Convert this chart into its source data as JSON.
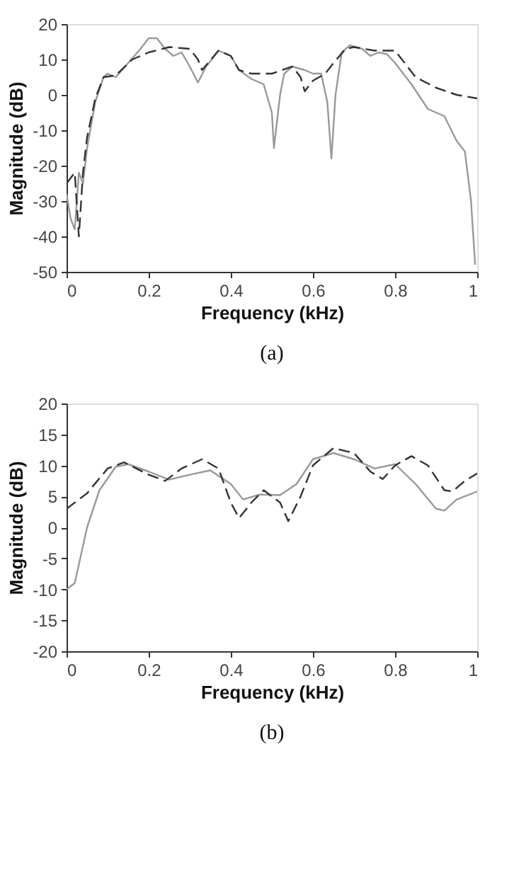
{
  "chart_data": [
    {
      "type": "line",
      "xlabel": "Frequency (kHz)",
      "ylabel": "Magnitude (dB)",
      "annotations": [
        "(a)"
      ],
      "xlim": [
        0,
        1
      ],
      "xticks": [
        0,
        0.2,
        0.4,
        0.6,
        0.8,
        1
      ],
      "ylim": [
        -50,
        20
      ],
      "yticks": [
        -50,
        -40,
        -30,
        -20,
        -10,
        0,
        10,
        20
      ],
      "grid": false,
      "marker": "none",
      "series": [
        {
          "color": "#999999",
          "line_style": "solid",
          "x": [
            0,
            0.01,
            0.02,
            0.03,
            0.04,
            0.05,
            0.07,
            0.09,
            0.1,
            0.12,
            0.15,
            0.18,
            0.2,
            0.22,
            0.24,
            0.26,
            0.28,
            0.3,
            0.32,
            0.34,
            0.37,
            0.4,
            0.42,
            0.45,
            0.48,
            0.5,
            0.505,
            0.52,
            0.53,
            0.55,
            0.58,
            0.6,
            0.62,
            0.635,
            0.645,
            0.655,
            0.67,
            0.69,
            0.72,
            0.74,
            0.76,
            0.78,
            0.8,
            0.84,
            0.88,
            0.92,
            0.95,
            0.97,
            0.985,
            0.995
          ],
          "values": [
            -28,
            -35,
            -38,
            -22,
            -25,
            -15,
            -2,
            5,
            6,
            5,
            9,
            13,
            16,
            16,
            13,
            11,
            12,
            8,
            3.5,
            8,
            12.5,
            11,
            7,
            4.5,
            3,
            -5,
            -15,
            0,
            6,
            8,
            7,
            6,
            6,
            -2,
            -18,
            0,
            12,
            14,
            13,
            11,
            12,
            11.5,
            9,
            3,
            -4,
            -6,
            -13,
            -16,
            -30,
            -48
          ]
        },
        {
          "color": "#333333",
          "line_style": "dashed",
          "x": [
            0,
            0.02,
            0.03,
            0.04,
            0.05,
            0.07,
            0.09,
            0.12,
            0.16,
            0.2,
            0.25,
            0.3,
            0.32,
            0.33,
            0.37,
            0.4,
            0.42,
            0.45,
            0.5,
            0.55,
            0.57,
            0.58,
            0.6,
            0.63,
            0.65,
            0.68,
            0.7,
            0.75,
            0.8,
            0.85,
            0.9,
            0.95,
            1
          ],
          "values": [
            -25,
            -22,
            -40,
            -22,
            -12,
            -1,
            5,
            5.5,
            10,
            12,
            13.5,
            13,
            10,
            7,
            12.5,
            11,
            7,
            6,
            6,
            8,
            5,
            1,
            4,
            6,
            9,
            13,
            13.5,
            12.5,
            12.5,
            5,
            2,
            0,
            -1
          ]
        }
      ]
    },
    {
      "type": "line",
      "xlabel": "Frequency (kHz)",
      "ylabel": "Magnitude (dB)",
      "annotations": [
        "(b)"
      ],
      "xlim": [
        0,
        1
      ],
      "xticks": [
        0,
        0.2,
        0.4,
        0.6,
        0.8,
        1
      ],
      "ylim": [
        -20,
        20
      ],
      "yticks": [
        -20,
        -15,
        -10,
        -5,
        0,
        5,
        10,
        15,
        20
      ],
      "grid": false,
      "marker": "none",
      "series": [
        {
          "color": "#999999",
          "line_style": "solid",
          "x": [
            0,
            0.02,
            0.05,
            0.08,
            0.12,
            0.15,
            0.2,
            0.25,
            0.3,
            0.35,
            0.4,
            0.43,
            0.47,
            0.52,
            0.56,
            0.6,
            0.65,
            0.7,
            0.75,
            0.8,
            0.85,
            0.9,
            0.92,
            0.95,
            1
          ],
          "values": [
            -10,
            -9,
            0,
            6,
            9.8,
            10.2,
            9,
            7.7,
            8.5,
            9.2,
            7,
            4.5,
            5.3,
            5.2,
            7,
            11,
            12,
            11,
            9.5,
            10.2,
            7,
            3,
            2.7,
            4.5,
            5.8
          ]
        },
        {
          "color": "#333333",
          "line_style": "dashed",
          "x": [
            0,
            0.05,
            0.1,
            0.14,
            0.2,
            0.24,
            0.28,
            0.33,
            0.37,
            0.4,
            0.42,
            0.45,
            0.48,
            0.52,
            0.54,
            0.57,
            0.6,
            0.65,
            0.7,
            0.74,
            0.77,
            0.8,
            0.84,
            0.88,
            0.92,
            0.94,
            0.97,
            1
          ],
          "values": [
            3,
            5.5,
            9.5,
            10.5,
            8.5,
            7.5,
            9.5,
            11,
            9.5,
            4,
            1.5,
            4,
            6,
            4,
            1,
            5,
            10,
            12.8,
            12,
            9,
            7.8,
            10,
            11.5,
            10,
            6,
            5.8,
            7.5,
            8.7
          ]
        }
      ]
    }
  ]
}
